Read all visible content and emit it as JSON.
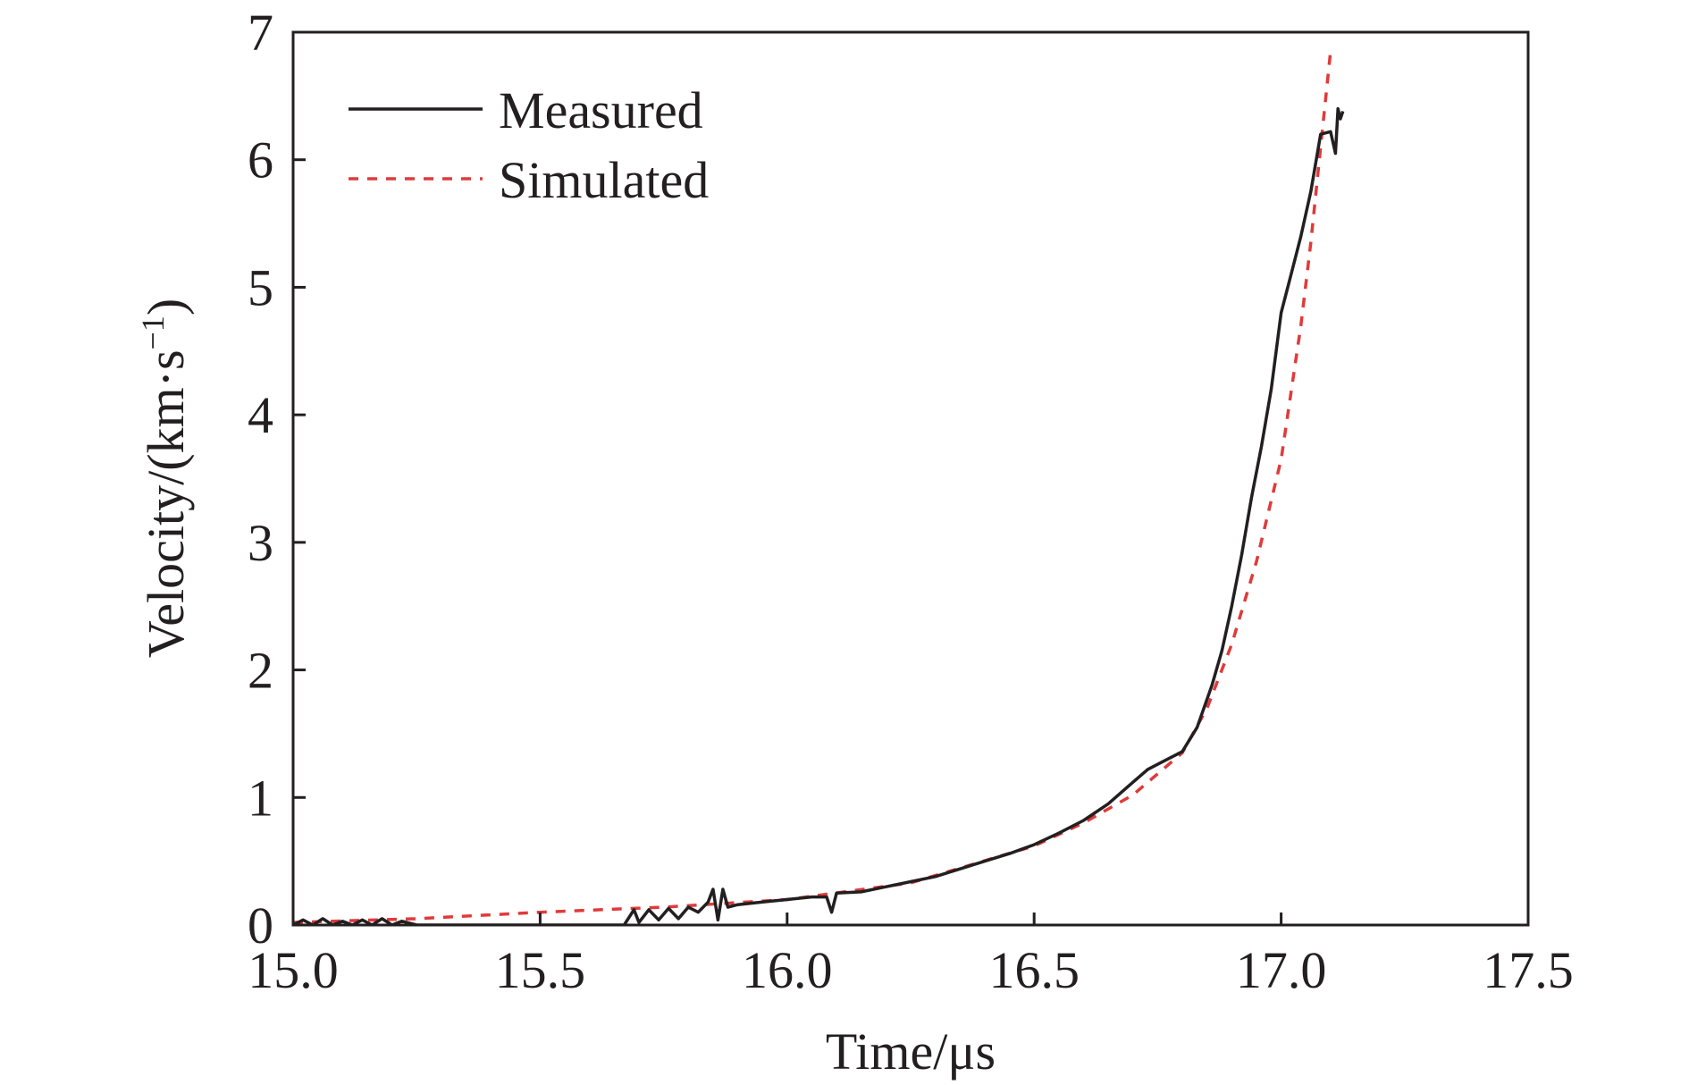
{
  "chart_data": {
    "type": "line",
    "title": "",
    "xlabel": "Time/μs",
    "ylabel": {
      "base": "Velocity/(km·s",
      "sup": "−1",
      "close": ")"
    },
    "xlim": [
      15.0,
      17.5
    ],
    "ylim": [
      0,
      7
    ],
    "x_ticks": [
      "15.0",
      "15.5",
      "16.0",
      "16.5",
      "17.0",
      "17.5"
    ],
    "y_ticks": [
      "0",
      "1",
      "2",
      "3",
      "4",
      "5",
      "6",
      "7"
    ],
    "grid": false,
    "legend_position": "top-left",
    "series": [
      {
        "name": "Measured",
        "style": "solid",
        "color": "#231f20",
        "x": [
          15.0,
          15.02,
          15.04,
          15.06,
          15.08,
          15.1,
          15.12,
          15.14,
          15.16,
          15.18,
          15.2,
          15.22,
          15.25,
          15.3,
          15.4,
          15.5,
          15.6,
          15.67,
          15.69,
          15.7,
          15.72,
          15.74,
          15.76,
          15.78,
          15.8,
          15.82,
          15.84,
          15.85,
          15.86,
          15.87,
          15.88,
          15.9,
          15.95,
          16.0,
          16.05,
          16.08,
          16.09,
          16.1,
          16.15,
          16.2,
          16.25,
          16.3,
          16.35,
          16.4,
          16.45,
          16.5,
          16.55,
          16.6,
          16.65,
          16.7,
          16.73,
          16.76,
          16.8,
          16.83,
          16.86,
          16.88,
          16.9,
          16.92,
          16.94,
          16.96,
          16.98,
          17.0,
          17.02,
          17.04,
          17.06,
          17.08,
          17.1,
          17.11,
          17.115,
          17.12,
          17.125
        ],
        "y": [
          0.0,
          0.04,
          0.0,
          0.05,
          0.0,
          0.03,
          0.0,
          0.04,
          0.0,
          0.05,
          0.0,
          0.03,
          0.0,
          0.0,
          0.0,
          0.0,
          0.0,
          0.0,
          0.12,
          0.02,
          0.12,
          0.04,
          0.13,
          0.05,
          0.14,
          0.1,
          0.18,
          0.28,
          0.04,
          0.28,
          0.14,
          0.16,
          0.18,
          0.2,
          0.22,
          0.22,
          0.1,
          0.25,
          0.26,
          0.3,
          0.34,
          0.38,
          0.44,
          0.5,
          0.56,
          0.63,
          0.72,
          0.82,
          0.95,
          1.12,
          1.22,
          1.28,
          1.36,
          1.55,
          1.88,
          2.15,
          2.5,
          2.9,
          3.35,
          3.75,
          4.2,
          4.8,
          5.1,
          5.4,
          5.75,
          6.2,
          6.22,
          6.05,
          6.4,
          6.32,
          6.38
        ]
      },
      {
        "name": "Simulated",
        "style": "dashed",
        "color": "#e03a3a",
        "x": [
          15.0,
          15.25,
          15.5,
          15.75,
          16.0,
          16.25,
          16.5,
          16.6,
          16.7,
          16.8,
          16.85,
          16.9,
          16.95,
          17.0,
          17.04,
          17.06,
          17.08,
          17.1
        ],
        "y": [
          0.02,
          0.05,
          0.1,
          0.14,
          0.2,
          0.33,
          0.62,
          0.8,
          1.02,
          1.35,
          1.7,
          2.2,
          2.85,
          3.65,
          4.7,
          5.35,
          6.1,
          6.85
        ]
      }
    ]
  }
}
